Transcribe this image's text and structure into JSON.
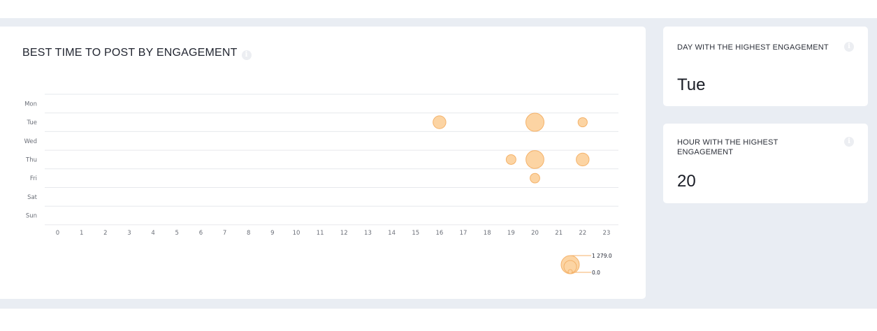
{
  "main": {
    "title": "BEST TIME TO POST BY ENGAGEMENT",
    "info_icon": "info-icon"
  },
  "day_card": {
    "title": "DAY WITH THE HIGHEST ENGAGEMENT",
    "value": "Tue",
    "info_icon": "info-icon"
  },
  "hour_card": {
    "title": "HOUR WITH THE HIGHEST ENGAGEMENT",
    "value": "20",
    "info_icon": "info-icon"
  },
  "colors": {
    "bubble_fill": "#fcd4a3",
    "bubble_stroke": "#f4b26a",
    "background": "#e9edf3"
  },
  "chart_data": {
    "type": "scatter",
    "y_categories": [
      "Mon",
      "Tue",
      "Wed",
      "Thu",
      "Fri",
      "Sat",
      "Sun"
    ],
    "x_ticks": [
      "0",
      "1",
      "2",
      "3",
      "4",
      "5",
      "6",
      "7",
      "8",
      "9",
      "10",
      "11",
      "12",
      "13",
      "14",
      "15",
      "16",
      "17",
      "18",
      "19",
      "20",
      "21",
      "22",
      "23"
    ],
    "points": [
      {
        "day": "Tue",
        "hour": 16,
        "engagement": 640
      },
      {
        "day": "Tue",
        "hour": 20,
        "engagement": 1279
      },
      {
        "day": "Tue",
        "hour": 22,
        "engagement": 330
      },
      {
        "day": "Thu",
        "hour": 19,
        "engagement": 370
      },
      {
        "day": "Thu",
        "hour": 20,
        "engagement": 1250
      },
      {
        "day": "Thu",
        "hour": 22,
        "engagement": 640
      },
      {
        "day": "Fri",
        "hour": 20,
        "engagement": 360
      }
    ],
    "size_legend": {
      "max_label": "1 279.0",
      "min_label": "0.0",
      "max_value": 1279,
      "min_value": 0
    },
    "grid": true
  }
}
